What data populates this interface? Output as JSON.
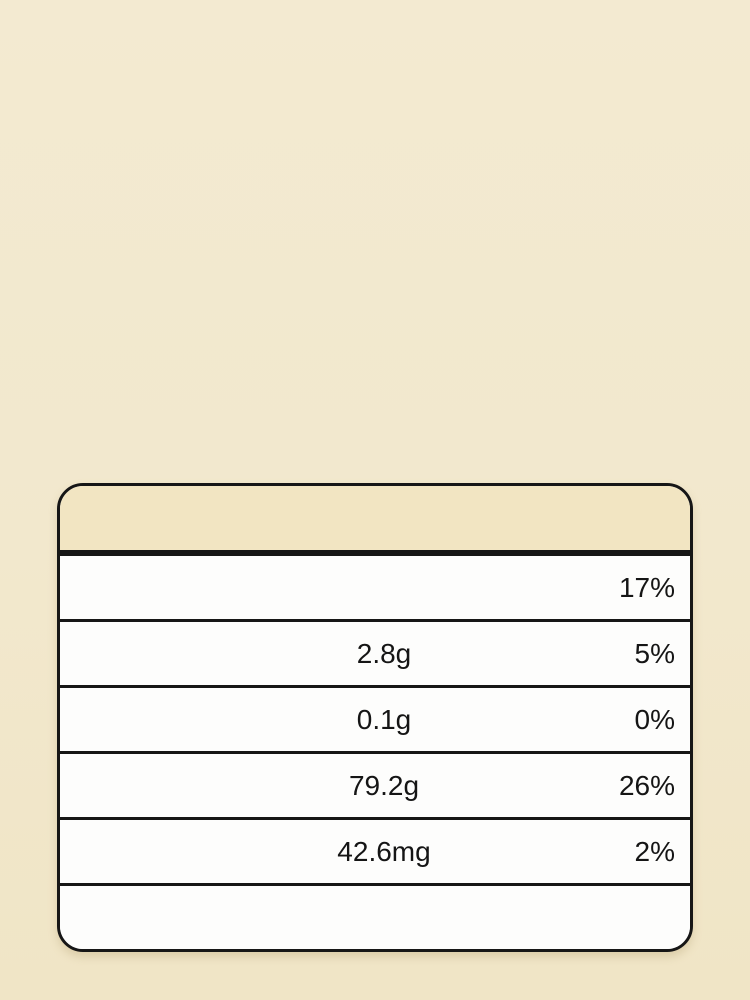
{
  "page": {
    "background_color": "#f2e8cd",
    "description": "Nutrition facts style table on cream background; nutrient name column is blank/washed out"
  },
  "nutrition_label": {
    "header_text": "",
    "header_color": "#f2e5c2",
    "border_color": "#161616",
    "row_color": "#fdfdfc",
    "text_color": "#151515",
    "rows": [
      {
        "label": "",
        "amount": "",
        "dv": "17%"
      },
      {
        "label": "",
        "amount": "2.8g",
        "dv": "5%"
      },
      {
        "label": "",
        "amount": "0.1g",
        "dv": "0%"
      },
      {
        "label": "",
        "amount": "79.2g",
        "dv": "26%"
      },
      {
        "label": "",
        "amount": "42.6mg",
        "dv": "2%"
      },
      {
        "label": "",
        "amount": "",
        "dv": ""
      }
    ]
  }
}
